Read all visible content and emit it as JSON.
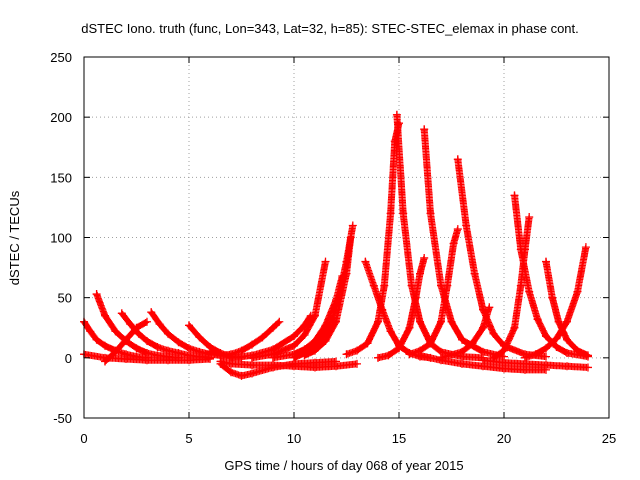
{
  "chart_data": {
    "type": "scatter",
    "title": "dSTEC Iono. truth (func, Lon=343, Lat=32, h=85): STEC-STEC_elemax in phase cont.",
    "xlabel": "GPS time / hours of day 068 of year 2015",
    "ylabel": "dSTEC  / TECUs",
    "xlim": [
      0,
      25
    ],
    "ylim": [
      -50,
      250
    ],
    "xticks": [
      "0",
      "5",
      "10",
      "15",
      "20",
      "25"
    ],
    "yticks": [
      "-50",
      "0",
      "50",
      "100",
      "150",
      "200",
      "250"
    ],
    "grid": true,
    "marker": "+",
    "color": "#ff0000",
    "series": [
      {
        "x": [
          0.0,
          0.3,
          0.6,
          1.0,
          1.5,
          2.0,
          2.5,
          3.0
        ],
        "values": [
          30,
          22,
          15,
          10,
          6,
          3,
          1,
          0
        ]
      },
      {
        "x": [
          0.6,
          1.0,
          1.5,
          2.0,
          2.5,
          3.0,
          3.5,
          4.0,
          4.5
        ],
        "values": [
          53,
          35,
          22,
          14,
          8,
          4,
          2,
          1,
          0
        ]
      },
      {
        "x": [
          0.0,
          1.0,
          2.0,
          3.0,
          4.0,
          5.0,
          6.0
        ],
        "values": [
          3,
          0,
          -1,
          -2,
          -2,
          -2,
          -1
        ]
      },
      {
        "x": [
          1.0,
          1.5,
          2.0,
          2.5,
          3.0
        ],
        "values": [
          -3,
          5,
          15,
          25,
          30
        ]
      },
      {
        "x": [
          1.8,
          2.2,
          2.6,
          3.0,
          3.5,
          4.0,
          4.5,
          5.0,
          5.5,
          6.0
        ],
        "values": [
          37,
          28,
          20,
          14,
          9,
          6,
          4,
          2,
          1,
          0
        ]
      },
      {
        "x": [
          3.2,
          3.6,
          4.0,
          4.5,
          5.0,
          5.5,
          6.0,
          7.0
        ],
        "values": [
          38,
          28,
          20,
          13,
          8,
          5,
          3,
          1
        ]
      },
      {
        "x": [
          5.0,
          5.5,
          6.0,
          6.5,
          7.0,
          7.5
        ],
        "values": [
          27,
          17,
          9,
          4,
          1,
          0
        ]
      },
      {
        "x": [
          6.0,
          6.5,
          7.0,
          7.5,
          8.0,
          8.5,
          9.0,
          9.3
        ],
        "values": [
          5,
          2,
          3,
          6,
          11,
          17,
          25,
          30
        ]
      },
      {
        "x": [
          6.5,
          7.0,
          7.5,
          8.0,
          9.0,
          10.0,
          11.0,
          12.0
        ],
        "values": [
          -5,
          -12,
          -15,
          -13,
          -8,
          -5,
          -4,
          -3
        ]
      },
      {
        "x": [
          6.5,
          7.0,
          8.0,
          9.0,
          10.0,
          11.0,
          12.0,
          13.0
        ],
        "values": [
          -3,
          -5,
          -6,
          -6,
          -7,
          -8,
          -7,
          -5
        ]
      },
      {
        "x": [
          7.0,
          8.0,
          9.0,
          10.0,
          10.5,
          10.8
        ],
        "values": [
          0,
          2,
          7,
          18,
          27,
          35
        ]
      },
      {
        "x": [
          8.0,
          9.0,
          10.0,
          10.5,
          11.0,
          11.5
        ],
        "values": [
          0,
          3,
          10,
          19,
          35,
          80
        ]
      },
      {
        "x": [
          9.0,
          10.0,
          10.5,
          11.0,
          11.5,
          12.0,
          12.3
        ],
        "values": [
          0,
          3,
          7,
          14,
          27,
          48,
          68
        ]
      },
      {
        "x": [
          10.0,
          10.5,
          11.0,
          11.5,
          12.0,
          12.5,
          12.8
        ],
        "values": [
          0,
          4,
          10,
          20,
          40,
          80,
          110
        ]
      },
      {
        "x": [
          10.5,
          11.0,
          11.5,
          12.0,
          12.5,
          12.7
        ],
        "values": [
          2,
          6,
          14,
          30,
          70,
          100
        ]
      },
      {
        "x": [
          13.4,
          13.8,
          14.2,
          14.6,
          15.0,
          15.5,
          16.0,
          16.5
        ],
        "values": [
          80,
          60,
          40,
          22,
          10,
          4,
          1,
          0
        ]
      },
      {
        "x": [
          12.5,
          13.0,
          13.5,
          14.0,
          14.3,
          14.6,
          14.8,
          15.0
        ],
        "values": [
          3,
          6,
          12,
          30,
          60,
          120,
          180,
          195
        ]
      },
      {
        "x": [
          14.9,
          15.2,
          15.6,
          16.0,
          16.5,
          17.0,
          18.0,
          19.0
        ],
        "values": [
          202,
          120,
          60,
          30,
          12,
          5,
          1,
          0
        ]
      },
      {
        "x": [
          14.0,
          14.5,
          15.0,
          15.5,
          15.8,
          16.0,
          16.2
        ],
        "values": [
          0,
          2,
          8,
          25,
          50,
          70,
          83
        ]
      },
      {
        "x": [
          16.2,
          16.5,
          17.0,
          17.5,
          18.0,
          19.0,
          20.0
        ],
        "values": [
          190,
          120,
          60,
          30,
          15,
          5,
          1
        ]
      },
      {
        "x": [
          15.5,
          16.0,
          16.5,
          17.0,
          17.3,
          17.6,
          17.8
        ],
        "values": [
          3,
          6,
          12,
          30,
          60,
          95,
          107
        ]
      },
      {
        "x": [
          17.8,
          18.2,
          18.6,
          19.0,
          19.5,
          20.0,
          21.0,
          22.0
        ],
        "values": [
          165,
          110,
          70,
          40,
          20,
          10,
          3,
          1
        ]
      },
      {
        "x": [
          16.0,
          17.0,
          18.0,
          19.0,
          20.0,
          21.0,
          22.0
        ],
        "values": [
          2,
          -2,
          -5,
          -7,
          -9,
          -10,
          -10
        ]
      },
      {
        "x": [
          17.0,
          18.0,
          18.5,
          19.0,
          19.3
        ],
        "values": [
          0,
          5,
          12,
          25,
          42
        ]
      },
      {
        "x": [
          20.5,
          20.8,
          21.2,
          21.6,
          22.0,
          22.5,
          23.0,
          24.0
        ],
        "values": [
          135,
          90,
          55,
          32,
          18,
          9,
          4,
          1
        ]
      },
      {
        "x": [
          19.5,
          20.0,
          20.5,
          20.8,
          21.0,
          21.2
        ],
        "values": [
          0,
          6,
          25,
          60,
          90,
          117
        ]
      },
      {
        "x": [
          22.0,
          22.3,
          22.6,
          23.0,
          23.5,
          24.0
        ],
        "values": [
          80,
          50,
          30,
          15,
          6,
          2
        ]
      },
      {
        "x": [
          21.0,
          21.5,
          22.0,
          22.5,
          23.0,
          23.5,
          23.9
        ],
        "values": [
          0,
          3,
          8,
          16,
          30,
          55,
          92
        ]
      },
      {
        "x": [
          19.0,
          20.0,
          21.0,
          22.0,
          23.0,
          24.0
        ],
        "values": [
          -2,
          -4,
          -5,
          -6,
          -7,
          -8
        ]
      }
    ]
  }
}
